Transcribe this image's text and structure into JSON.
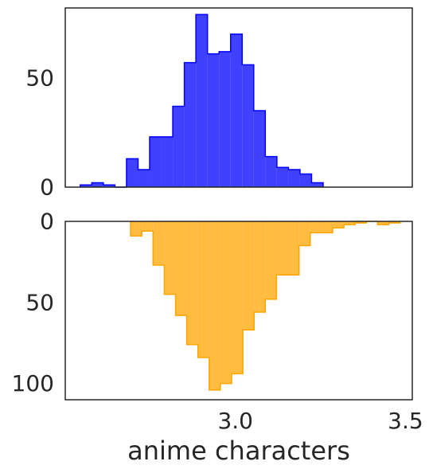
{
  "chart_data": [
    {
      "type": "histogram",
      "orientation": "up",
      "color": "#0000ff",
      "fill_opacity": 0.75,
      "xlim": [
        2.5,
        3.52
      ],
      "ylim": [
        0,
        82
      ],
      "yticks": [
        0,
        50
      ],
      "ytick_labels": [
        "0",
        "50"
      ],
      "bins": [
        {
          "x0": 2.544,
          "x1": 2.578,
          "count": 1
        },
        {
          "x0": 2.578,
          "x1": 2.612,
          "count": 2
        },
        {
          "x0": 2.612,
          "x1": 2.646,
          "count": 1
        },
        {
          "x0": 2.646,
          "x1": 2.68,
          "count": 0
        },
        {
          "x0": 2.68,
          "x1": 2.714,
          "count": 13
        },
        {
          "x0": 2.714,
          "x1": 2.748,
          "count": 8
        },
        {
          "x0": 2.748,
          "x1": 2.782,
          "count": 23
        },
        {
          "x0": 2.782,
          "x1": 2.816,
          "count": 23
        },
        {
          "x0": 2.816,
          "x1": 2.85,
          "count": 37
        },
        {
          "x0": 2.85,
          "x1": 2.884,
          "count": 57
        },
        {
          "x0": 2.884,
          "x1": 2.918,
          "count": 79
        },
        {
          "x0": 2.918,
          "x1": 2.952,
          "count": 61
        },
        {
          "x0": 2.952,
          "x1": 2.986,
          "count": 62
        },
        {
          "x0": 2.986,
          "x1": 3.02,
          "count": 70
        },
        {
          "x0": 3.02,
          "x1": 3.054,
          "count": 56
        },
        {
          "x0": 3.054,
          "x1": 3.088,
          "count": 35
        },
        {
          "x0": 3.088,
          "x1": 3.122,
          "count": 14
        },
        {
          "x0": 3.122,
          "x1": 3.156,
          "count": 9
        },
        {
          "x0": 3.156,
          "x1": 3.19,
          "count": 8
        },
        {
          "x0": 3.19,
          "x1": 3.224,
          "count": 6
        },
        {
          "x0": 3.224,
          "x1": 3.258,
          "count": 2
        }
      ]
    },
    {
      "type": "histogram",
      "orientation": "down",
      "color": "#ffa500",
      "fill_opacity": 0.75,
      "xlim": [
        2.5,
        3.52
      ],
      "ylim": [
        0,
        110
      ],
      "yticks": [
        0,
        50,
        100
      ],
      "ytick_labels": [
        "0",
        "50",
        "100"
      ],
      "xticks": [
        3.0,
        3.5
      ],
      "xtick_labels": [
        "3.0",
        "3.5"
      ],
      "xlabel": "anime characters",
      "bins": [
        {
          "x0": 2.692,
          "x1": 2.725,
          "count": 9
        },
        {
          "x0": 2.725,
          "x1": 2.758,
          "count": 6
        },
        {
          "x0": 2.758,
          "x1": 2.791,
          "count": 27
        },
        {
          "x0": 2.791,
          "x1": 2.824,
          "count": 45
        },
        {
          "x0": 2.824,
          "x1": 2.857,
          "count": 58
        },
        {
          "x0": 2.857,
          "x1": 2.89,
          "count": 76
        },
        {
          "x0": 2.89,
          "x1": 2.923,
          "count": 84
        },
        {
          "x0": 2.923,
          "x1": 2.956,
          "count": 104
        },
        {
          "x0": 2.956,
          "x1": 2.989,
          "count": 100
        },
        {
          "x0": 2.989,
          "x1": 3.022,
          "count": 94
        },
        {
          "x0": 3.022,
          "x1": 3.055,
          "count": 67
        },
        {
          "x0": 3.055,
          "x1": 3.088,
          "count": 56
        },
        {
          "x0": 3.088,
          "x1": 3.121,
          "count": 48
        },
        {
          "x0": 3.121,
          "x1": 3.154,
          "count": 33
        },
        {
          "x0": 3.154,
          "x1": 3.187,
          "count": 33
        },
        {
          "x0": 3.187,
          "x1": 3.22,
          "count": 15
        },
        {
          "x0": 3.22,
          "x1": 3.253,
          "count": 7
        },
        {
          "x0": 3.253,
          "x1": 3.286,
          "count": 7
        },
        {
          "x0": 3.286,
          "x1": 3.319,
          "count": 4
        },
        {
          "x0": 3.319,
          "x1": 3.352,
          "count": 2
        },
        {
          "x0": 3.352,
          "x1": 3.385,
          "count": 1
        },
        {
          "x0": 3.385,
          "x1": 3.418,
          "count": 0
        },
        {
          "x0": 3.418,
          "x1": 3.451,
          "count": 2
        },
        {
          "x0": 3.451,
          "x1": 3.484,
          "count": 1
        }
      ]
    }
  ]
}
